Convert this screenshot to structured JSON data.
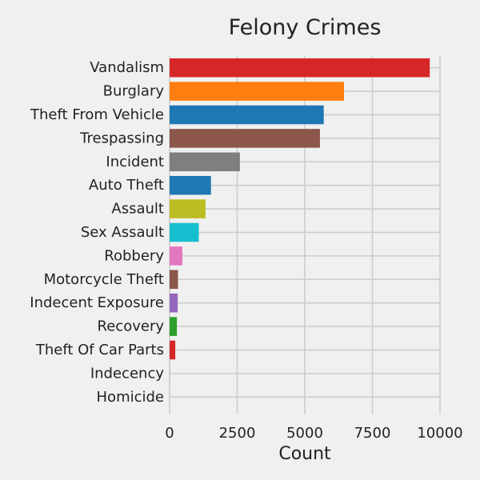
{
  "chart_data": {
    "type": "bar",
    "orientation": "horizontal",
    "title": "Felony Crimes",
    "xlabel": "Count",
    "ylabel": "",
    "xlim": [
      0,
      10000
    ],
    "x_ticks": [
      0,
      2500,
      5000,
      7500,
      10000
    ],
    "grid": true,
    "categories": [
      "Vandalism",
      "Burglary",
      "Theft From Vehicle",
      "Trespassing",
      "Incident",
      "Auto Theft",
      "Assault",
      "Sex Assault",
      "Robbery",
      "Motorcycle Theft",
      "Indecent Exposure",
      "Recovery",
      "Theft Of Car Parts",
      "Indecency",
      "Homicide"
    ],
    "values": [
      9620,
      6450,
      5700,
      5560,
      2600,
      1530,
      1330,
      1080,
      470,
      310,
      300,
      270,
      210,
      5,
      3
    ],
    "colors": [
      "#d62728",
      "#ff7f0e",
      "#1f77b4",
      "#8c564b",
      "#7f7f7f",
      "#1f77b4",
      "#bcbd22",
      "#17becf",
      "#e377c2",
      "#8c564b",
      "#9467bd",
      "#2ca02c",
      "#d62728",
      "#7f7f7f",
      "#bcbd22"
    ]
  }
}
